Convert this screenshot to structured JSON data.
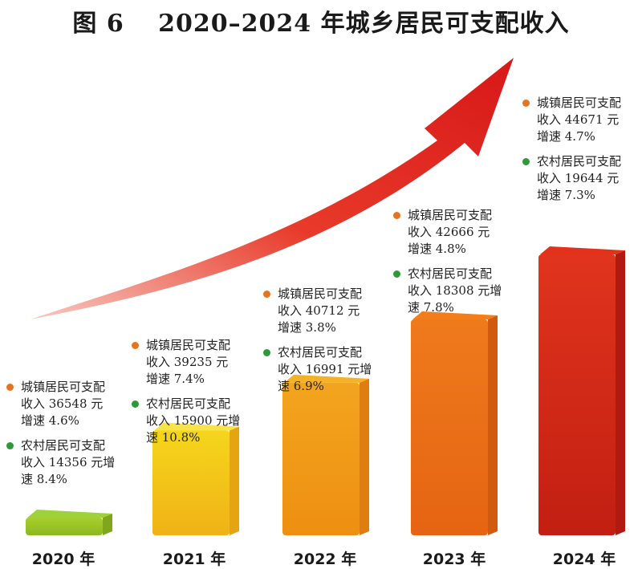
{
  "title": "图 6　 2020–2024 年城乡居民可支配收入",
  "colors": {
    "arrow": "#e02020",
    "urban_dot": "#e8731e",
    "rural_dot": "#2d9a3a"
  },
  "chart_data": {
    "type": "bar",
    "title": "图 6　 2020–2024 年城乡居民可支配收入",
    "categories": [
      "2020 年",
      "2021 年",
      "2022 年",
      "2023 年",
      "2024 年"
    ],
    "series": [
      {
        "name": "城镇居民可支配收入",
        "values": [
          36548,
          39235,
          40712,
          42666,
          44671
        ],
        "growth_pct": [
          4.6,
          7.4,
          3.8,
          4.8,
          4.7
        ]
      },
      {
        "name": "农村居民可支配收入",
        "values": [
          14356,
          15900,
          16991,
          18308,
          19644
        ],
        "growth_pct": [
          8.4,
          10.8,
          6.9,
          7.8,
          7.3
        ]
      }
    ],
    "unit": "元",
    "axes_shown": false,
    "grid": false,
    "legend": "none",
    "annotations": [
      {
        "year": "2020 年",
        "urban": "城镇居民可支配收入 36548 元增速 4.6%",
        "rural": "农村居民可支配收入 14356 元增速 8.4%"
      },
      {
        "year": "2021 年",
        "urban": "城镇居民可支配收入 39235 元增速 7.4%",
        "rural": "农村居民可支配收入 15900 元增速 10.8%"
      },
      {
        "year": "2022 年",
        "urban": "城镇居民可支配收入 40712 元增速 3.8%",
        "rural": "农村居民可支配收入 16991 元增速 6.9%"
      },
      {
        "year": "2023 年",
        "urban": "城镇居民可支配收入 42666 元增速 4.8%",
        "rural": "农村居民可支配收入 18308 元增速 7.8%"
      },
      {
        "year": "2024 年",
        "urban": "城镇居民可支配收入 44671 元增速 4.7%",
        "rural": "农村居民可支配收入 19644 元增速 7.3%"
      }
    ]
  }
}
